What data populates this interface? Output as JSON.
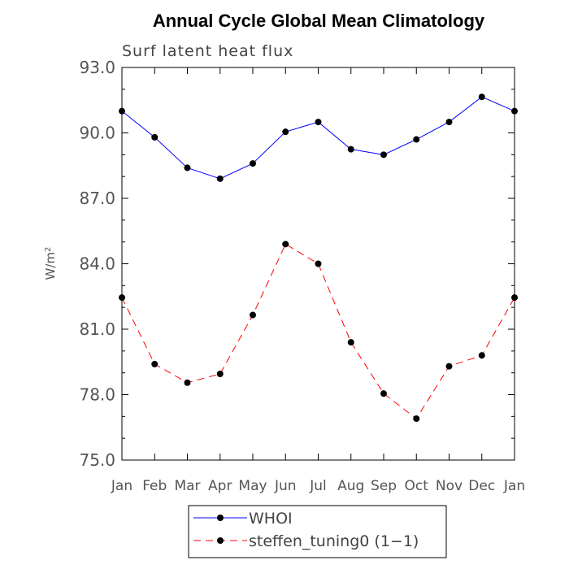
{
  "chart_data": {
    "type": "line",
    "title": "Annual Cycle Global Mean Climatology",
    "subtitle": "Surf latent heat flux",
    "ylabel": "W/m",
    "ylabel_sup": "2",
    "categories": [
      "Jan",
      "Feb",
      "Mar",
      "Apr",
      "May",
      "Jun",
      "Jul",
      "Aug",
      "Sep",
      "Oct",
      "Nov",
      "Dec",
      "Jan"
    ],
    "ylim": [
      75.0,
      93.0
    ],
    "yticks": [
      75.0,
      78.0,
      81.0,
      84.0,
      87.0,
      90.0,
      93.0
    ],
    "ytick_labels": [
      "75.0",
      "78.0",
      "81.0",
      "84.0",
      "87.0",
      "90.0",
      "93.0"
    ],
    "series": [
      {
        "name": "WHOI",
        "color": "#0000ff",
        "dash": "solid",
        "values": [
          91.0,
          89.8,
          88.4,
          87.9,
          88.6,
          90.05,
          90.5,
          89.25,
          89.0,
          89.7,
          90.5,
          91.65,
          91.0
        ]
      },
      {
        "name": "steffen_tuning0 (1−1)",
        "color": "#ff0000",
        "dash": "dashed",
        "values": [
          82.45,
          79.4,
          78.55,
          78.95,
          81.65,
          84.9,
          84.0,
          80.4,
          78.05,
          76.9,
          79.3,
          79.8,
          82.45
        ]
      }
    ],
    "legend_position": "bottom-left"
  }
}
